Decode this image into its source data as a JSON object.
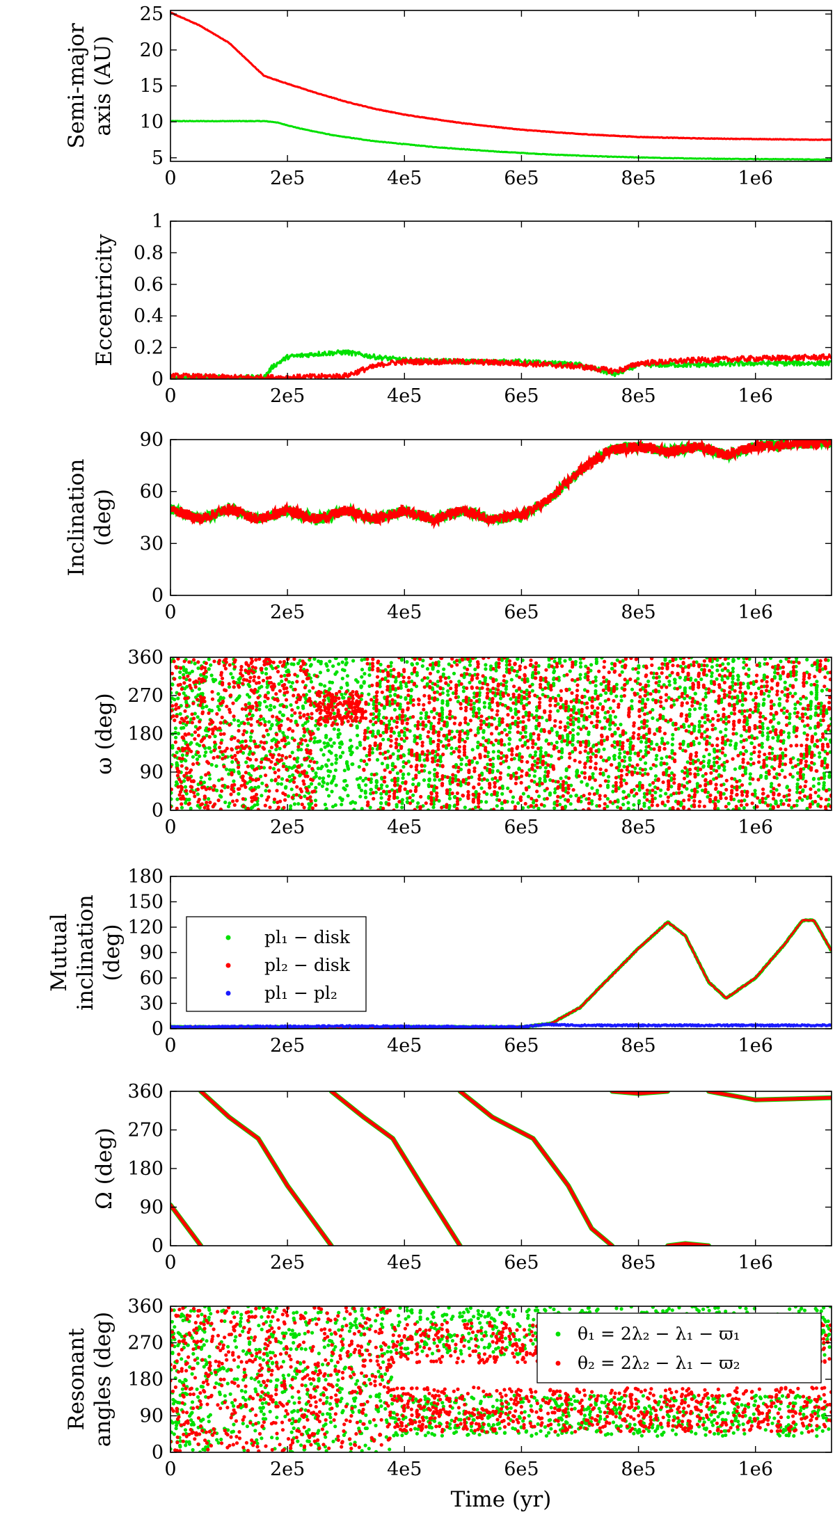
{
  "chart_data": [
    {
      "type": "line",
      "ylabel_lines": [
        "Semi-major",
        "axis (AU)"
      ],
      "xlim": [
        0,
        1130000
      ],
      "ylim": [
        4.5,
        25.5
      ],
      "yticks": [
        5,
        10,
        15,
        20,
        25
      ],
      "ytick_labels": [
        "5",
        "10",
        "15",
        "20",
        "25"
      ],
      "xticks": [
        0,
        200000,
        400000,
        600000,
        800000,
        1000000
      ],
      "xtick_labels": [
        "0",
        "2e5",
        "4e5",
        "6e5",
        "8e5",
        "1e6"
      ],
      "series": [
        {
          "color": "#00e000",
          "x": [
            0,
            160000,
            180000,
            220000,
            280000,
            350000,
            450000,
            550000,
            650000,
            750000,
            850000,
            950000,
            1050000,
            1130000
          ],
          "y": [
            10.1,
            10.1,
            9.95,
            9.1,
            8.1,
            7.3,
            6.5,
            5.9,
            5.45,
            5.15,
            4.95,
            4.85,
            4.8,
            4.75
          ]
        },
        {
          "color": "#ff0000",
          "x": [
            0,
            50000,
            100000,
            160000,
            200000,
            250000,
            300000,
            350000,
            400000,
            500000,
            600000,
            700000,
            800000,
            900000,
            1000000,
            1130000
          ],
          "y": [
            25.2,
            23.4,
            21.0,
            16.4,
            15.3,
            14.0,
            12.8,
            11.8,
            11.0,
            9.8,
            8.9,
            8.3,
            7.9,
            7.7,
            7.6,
            7.5
          ]
        }
      ]
    },
    {
      "type": "line",
      "ylabel_lines": [
        "Eccentricity"
      ],
      "xlim": [
        0,
        1130000
      ],
      "ylim": [
        0,
        1
      ],
      "yticks": [
        0,
        0.2,
        0.4,
        0.6,
        0.8,
        1
      ],
      "ytick_labels": [
        "0",
        "0.2",
        "0.4",
        "0.6",
        "0.8",
        "1"
      ],
      "xticks": [
        0,
        200000,
        400000,
        600000,
        800000,
        1000000
      ],
      "xtick_labels": [
        "0",
        "2e5",
        "4e5",
        "6e5",
        "8e5",
        "1e6"
      ],
      "series": [
        {
          "color": "#00e000",
          "x": [
            0,
            160000,
            175000,
            200000,
            250000,
            300000,
            350000,
            400000,
            500000,
            600000,
            700000,
            760000,
            780000,
            800000,
            900000,
            1000000,
            1130000
          ],
          "y": [
            0.01,
            0.01,
            0.08,
            0.14,
            0.16,
            0.17,
            0.14,
            0.12,
            0.11,
            0.11,
            0.09,
            0.03,
            0.06,
            0.09,
            0.09,
            0.1,
            0.1
          ]
        },
        {
          "color": "#ff0000",
          "x": [
            0,
            100000,
            200000,
            300000,
            330000,
            370000,
            400000,
            500000,
            600000,
            700000,
            760000,
            780000,
            800000,
            900000,
            1000000,
            1130000
          ],
          "y": [
            0.02,
            0.01,
            0.01,
            0.02,
            0.06,
            0.1,
            0.11,
            0.11,
            0.1,
            0.08,
            0.05,
            0.07,
            0.1,
            0.12,
            0.13,
            0.14
          ]
        }
      ]
    },
    {
      "type": "line",
      "ylabel_lines": [
        "Inclination",
        "(deg)"
      ],
      "xlim": [
        0,
        1130000
      ],
      "ylim": [
        0,
        90
      ],
      "yticks": [
        0,
        30,
        60,
        90
      ],
      "ytick_labels": [
        "0",
        "30",
        "60",
        "90"
      ],
      "xticks": [
        0,
        200000,
        400000,
        600000,
        800000,
        1000000
      ],
      "xtick_labels": [
        "0",
        "2e5",
        "4e5",
        "6e5",
        "8e5",
        "1e6"
      ],
      "series": [
        {
          "color": "#ff0000",
          "x": [
            0,
            50000,
            100000,
            150000,
            200000,
            250000,
            300000,
            350000,
            400000,
            450000,
            500000,
            550000,
            600000,
            650000,
            700000,
            750000,
            800000,
            850000,
            900000,
            950000,
            1000000,
            1050000,
            1100000,
            1130000
          ],
          "y": [
            50,
            44,
            50,
            44,
            49,
            44,
            49,
            44,
            49,
            44,
            49,
            44,
            46,
            56,
            72,
            84,
            86,
            83,
            86,
            81,
            86,
            87,
            88,
            88
          ]
        }
      ]
    },
    {
      "type": "scatter",
      "ylabel_lines": [
        "ω (deg)"
      ],
      "xlim": [
        0,
        1130000
      ],
      "ylim": [
        0,
        360
      ],
      "yticks": [
        0,
        90,
        180,
        270,
        360
      ],
      "ytick_labels": [
        "0",
        "90",
        "180",
        "270",
        "360"
      ],
      "xticks": [
        0,
        200000,
        400000,
        600000,
        800000,
        1000000
      ],
      "xtick_labels": [
        "0",
        "2e5",
        "4e5",
        "6e5",
        "8e5",
        "1e6"
      ],
      "series": [
        {
          "color": "#00e000",
          "description_points": "dense scatter filling 0-360 over full time range"
        },
        {
          "color": "#ff0000",
          "description_points": "dense scatter filling 0-360 over full time range"
        }
      ]
    },
    {
      "type": "line",
      "ylabel_lines": [
        "Mutual",
        "inclination",
        "(deg)"
      ],
      "xlim": [
        0,
        1130000
      ],
      "ylim": [
        0,
        180
      ],
      "yticks": [
        0,
        30,
        60,
        90,
        120,
        150,
        180
      ],
      "ytick_labels": [
        "0",
        "30",
        "60",
        "90",
        "120",
        "150",
        "180"
      ],
      "xticks": [
        0,
        200000,
        400000,
        600000,
        800000,
        1000000
      ],
      "xtick_labels": [
        "0",
        "2e5",
        "4e5",
        "6e5",
        "8e5",
        "1e6"
      ],
      "legend": [
        "pl₁ − disk",
        "pl₂ − disk",
        "pl₁ − pl₂"
      ],
      "series": [
        {
          "name": "pl₁ − disk",
          "color": "#00e000",
          "x": [
            0,
            300000,
            600000,
            650000,
            700000,
            750000,
            800000,
            850000,
            880000,
            920000,
            950000,
            1000000,
            1050000,
            1080000,
            1100000,
            1130000
          ],
          "y": [
            2,
            2,
            2,
            6,
            25,
            60,
            95,
            126,
            110,
            55,
            36,
            60,
            100,
            128,
            128,
            92
          ]
        },
        {
          "name": "pl₂ − disk",
          "color": "#ff0000",
          "x": [
            0,
            300000,
            600000,
            650000,
            700000,
            750000,
            800000,
            850000,
            880000,
            920000,
            950000,
            1000000,
            1050000,
            1080000,
            1100000,
            1130000
          ],
          "y": [
            2,
            2,
            2,
            6,
            25,
            60,
            95,
            126,
            110,
            55,
            36,
            60,
            100,
            128,
            128,
            92
          ]
        },
        {
          "name": "pl₁ − pl₂",
          "color": "#1a1aff",
          "x": [
            0,
            300000,
            600000,
            640000,
            700000,
            1130000
          ],
          "y": [
            2,
            3,
            2,
            5,
            4,
            4
          ]
        }
      ]
    },
    {
      "type": "scatter",
      "ylabel_lines": [
        "Ω (deg)"
      ],
      "xlim": [
        0,
        1130000
      ],
      "ylim": [
        0,
        360
      ],
      "yticks": [
        0,
        90,
        180,
        270,
        360
      ],
      "ytick_labels": [
        "0",
        "90",
        "180",
        "270",
        "360"
      ],
      "xticks": [
        0,
        200000,
        400000,
        600000,
        800000,
        1000000
      ],
      "xtick_labels": [
        "0",
        "2e5",
        "4e5",
        "6e5",
        "8e5",
        "1e6"
      ],
      "segments": [
        {
          "x": [
            0,
            52000
          ],
          "y": [
            95,
            0
          ]
        },
        {
          "x": [
            52000,
            100000,
            150000,
            200000,
            275000
          ],
          "y": [
            360,
            300,
            250,
            140,
            0
          ]
        },
        {
          "x": [
            275000,
            330000,
            380000,
            430000,
            495000
          ],
          "y": [
            360,
            300,
            250,
            140,
            0
          ]
        },
        {
          "x": [
            495000,
            550000,
            620000,
            680000,
            720000,
            755000
          ],
          "y": [
            360,
            300,
            250,
            140,
            40,
            0
          ]
        },
        {
          "x": [
            755000,
            800000,
            850000
          ],
          "y": [
            360,
            355,
            360
          ]
        },
        {
          "x": [
            850000,
            880000,
            920000
          ],
          "y": [
            0,
            5,
            0
          ]
        },
        {
          "x": [
            920000,
            1000000,
            1130000
          ],
          "y": [
            360,
            340,
            345
          ]
        }
      ]
    },
    {
      "type": "scatter",
      "ylabel_lines": [
        "Resonant",
        "angles (deg)"
      ],
      "xlabel": "Time (yr)",
      "xlim": [
        0,
        1130000
      ],
      "ylim": [
        0,
        360
      ],
      "yticks": [
        0,
        90,
        180,
        270,
        360
      ],
      "ytick_labels": [
        "0",
        "90",
        "180",
        "270",
        "360"
      ],
      "xticks": [
        0,
        200000,
        400000,
        600000,
        800000,
        1000000
      ],
      "xtick_labels": [
        "0",
        "2e5",
        "4e5",
        "6e5",
        "8e5",
        "1e6"
      ],
      "legend": [
        "θ₁ = 2λ₂ − λ₁ − ϖ₁",
        "θ₂ = 2λ₂ − λ₁ − ϖ₂"
      ],
      "series": [
        {
          "name": "θ₁ = 2λ₂ − λ₁ − ϖ₁",
          "color": "#00e000"
        },
        {
          "name": "θ₂ = 2λ₂ − λ₁ − ϖ₂",
          "color": "#ff0000"
        }
      ]
    }
  ]
}
